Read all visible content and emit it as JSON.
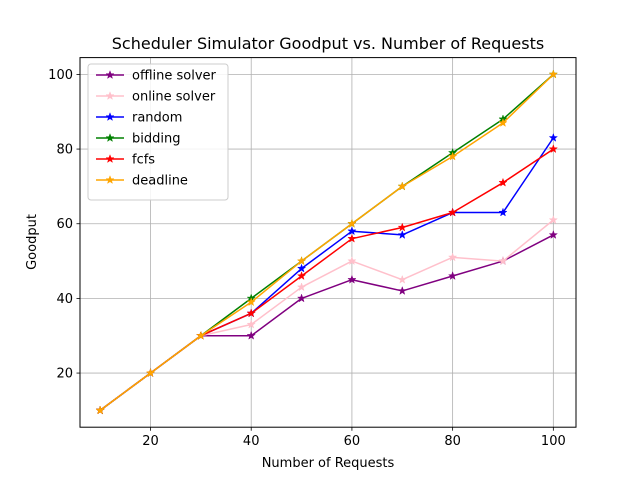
{
  "chart_data": {
    "type": "line",
    "title": "Scheduler Simulator Goodput vs. Number of Requests",
    "xlabel": "Number of Requests",
    "ylabel": "Goodput",
    "x": [
      10,
      20,
      30,
      40,
      50,
      60,
      70,
      80,
      90,
      100
    ],
    "xlim": [
      6,
      104.5
    ],
    "ylim": [
      5.5,
      104.5
    ],
    "xticks": [
      20,
      40,
      60,
      80,
      100
    ],
    "yticks": [
      20,
      40,
      60,
      80,
      100
    ],
    "grid": true,
    "legend_position": "upper-left",
    "marker": "star",
    "series": [
      {
        "name": "offline solver",
        "color": "#800080",
        "values": [
          10,
          20,
          30,
          30,
          40,
          45,
          42,
          46,
          50,
          57
        ]
      },
      {
        "name": "online solver",
        "color": "#ffc0cb",
        "values": [
          10,
          20,
          30,
          33,
          43,
          50,
          45,
          51,
          50,
          61
        ]
      },
      {
        "name": "random",
        "color": "#0000ff",
        "values": [
          10,
          20,
          30,
          36,
          48,
          58,
          57,
          63,
          63,
          83
        ]
      },
      {
        "name": "bidding",
        "color": "#008000",
        "values": [
          10,
          20,
          30,
          40,
          50,
          60,
          70,
          79,
          88,
          100
        ]
      },
      {
        "name": "fcfs",
        "color": "#ff0000",
        "values": [
          10,
          20,
          30,
          36,
          46,
          56,
          59,
          63,
          71,
          80
        ]
      },
      {
        "name": "deadline",
        "color": "#ffa500",
        "values": [
          10,
          20,
          30,
          39,
          50,
          60,
          70,
          78,
          87,
          100
        ]
      }
    ]
  }
}
